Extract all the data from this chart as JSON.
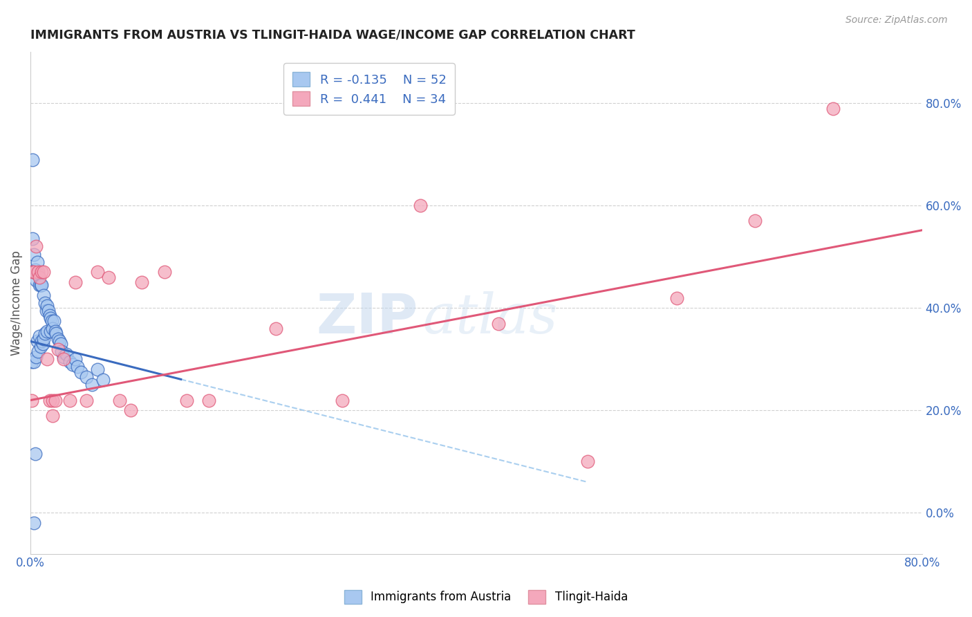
{
  "title": "IMMIGRANTS FROM AUSTRIA VS TLINGIT-HAIDA WAGE/INCOME GAP CORRELATION CHART",
  "source": "Source: ZipAtlas.com",
  "ylabel": "Wage/Income Gap",
  "xmin": 0.0,
  "xmax": 0.8,
  "ymin": -0.08,
  "ymax": 0.9,
  "right_yticks": [
    0.0,
    0.2,
    0.4,
    0.6,
    0.8
  ],
  "right_yticklabels": [
    "0.0%",
    "20.0%",
    "40.0%",
    "60.0%",
    "80.0%"
  ],
  "bottom_xticks": [
    0.0,
    0.1,
    0.2,
    0.3,
    0.4,
    0.5,
    0.6,
    0.7,
    0.8
  ],
  "legend_r1": "R = -0.135",
  "legend_n1": "N = 52",
  "legend_r2": "R =  0.441",
  "legend_n2": "N = 34",
  "series1_color": "#a8c8f0",
  "series2_color": "#f4a8bc",
  "trendline1_color": "#3a6bbf",
  "trendline2_color": "#e05878",
  "dashed_color": "#aacfef",
  "watermark_zip": "ZIP",
  "watermark_atlas": "atlas",
  "blue_x": [
    0.001,
    0.002,
    0.003,
    0.003,
    0.004,
    0.005,
    0.005,
    0.006,
    0.006,
    0.007,
    0.007,
    0.008,
    0.008,
    0.009,
    0.009,
    0.01,
    0.01,
    0.011,
    0.012,
    0.012,
    0.013,
    0.013,
    0.014,
    0.015,
    0.015,
    0.016,
    0.017,
    0.018,
    0.018,
    0.019,
    0.02,
    0.021,
    0.022,
    0.023,
    0.025,
    0.026,
    0.027,
    0.028,
    0.03,
    0.032,
    0.035,
    0.038,
    0.04,
    0.042,
    0.045,
    0.05,
    0.055,
    0.06,
    0.065,
    0.002,
    0.003,
    0.004
  ],
  "blue_y": [
    0.295,
    0.535,
    0.505,
    0.295,
    0.475,
    0.455,
    0.305,
    0.49,
    0.335,
    0.465,
    0.315,
    0.445,
    0.345,
    0.445,
    0.325,
    0.445,
    0.335,
    0.33,
    0.425,
    0.34,
    0.41,
    0.35,
    0.395,
    0.405,
    0.355,
    0.395,
    0.385,
    0.38,
    0.355,
    0.375,
    0.36,
    0.375,
    0.355,
    0.35,
    0.34,
    0.335,
    0.33,
    0.315,
    0.305,
    0.31,
    0.295,
    0.29,
    0.3,
    0.285,
    0.275,
    0.265,
    0.25,
    0.28,
    0.26,
    0.69,
    -0.02,
    0.115
  ],
  "pink_x": [
    0.001,
    0.002,
    0.003,
    0.005,
    0.007,
    0.008,
    0.01,
    0.012,
    0.015,
    0.017,
    0.02,
    0.022,
    0.025,
    0.03,
    0.035,
    0.04,
    0.05,
    0.06,
    0.07,
    0.08,
    0.09,
    0.1,
    0.12,
    0.14,
    0.16,
    0.22,
    0.28,
    0.35,
    0.42,
    0.5,
    0.58,
    0.65,
    0.72,
    0.02
  ],
  "pink_y": [
    0.22,
    0.47,
    0.47,
    0.52,
    0.47,
    0.46,
    0.47,
    0.47,
    0.3,
    0.22,
    0.22,
    0.22,
    0.32,
    0.3,
    0.22,
    0.45,
    0.22,
    0.47,
    0.46,
    0.22,
    0.2,
    0.45,
    0.47,
    0.22,
    0.22,
    0.36,
    0.22,
    0.6,
    0.37,
    0.1,
    0.42,
    0.57,
    0.79,
    0.19
  ]
}
